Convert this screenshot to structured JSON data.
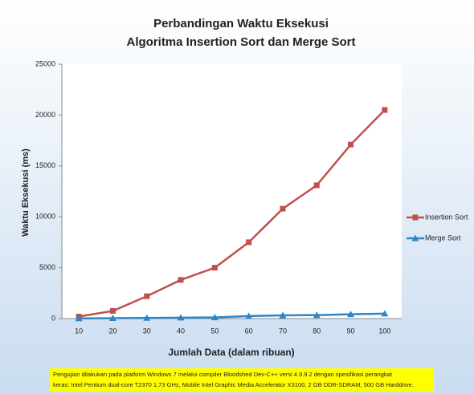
{
  "chart_data": {
    "type": "line",
    "title": [
      "Perbandingan Waktu Eksekusi",
      "Algoritma Insertion Sort dan Merge Sort"
    ],
    "xlabel": "Jumlah Data (dalam ribuan)",
    "ylabel": "Waktu Eksekusi  (ms)",
    "categories": [
      "10",
      "20",
      "30",
      "40",
      "50",
      "60",
      "70",
      "80",
      "90",
      "100"
    ],
    "series": [
      {
        "name": "Insertion Sort",
        "color": "#c0504d",
        "marker": "square",
        "values": [
          200,
          750,
          2200,
          3800,
          5000,
          7500,
          10800,
          13100,
          17100,
          20500
        ]
      },
      {
        "name": "Merge Sort",
        "color": "#2e86c8",
        "marker": "triangle",
        "values": [
          20,
          40,
          60,
          90,
          110,
          250,
          320,
          340,
          420,
          480
        ]
      }
    ],
    "ylim": [
      0,
      25000
    ],
    "yticks": [
      0,
      5000,
      10000,
      15000,
      20000,
      25000
    ],
    "grid": false,
    "legend": "right",
    "note": [
      "Pengujian dilakukan pada platform Windows 7 melalui compiler Bloodshed Dev-C++ versi  4.9.9.2 dengan spesifikasi perangkat",
      "keras: Intel Pentium dual-core T2370 1,73 GHz,  Mobile Intel Graphic Media Accelerator X3100,  2 GB DDR-SDRAM, 500 GB Harddrive."
    ]
  }
}
